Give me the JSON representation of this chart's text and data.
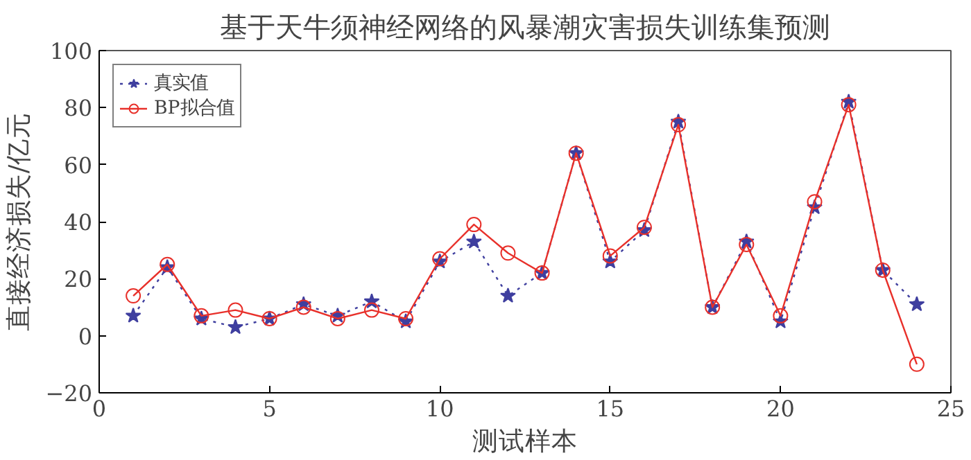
{
  "chart_data": {
    "type": "line",
    "title": "基于天牛须神经网络的风暴潮灾害损失训练集预测",
    "xlabel": "测试样本",
    "ylabel": "直接经济损失/亿元",
    "x": [
      1,
      2,
      3,
      4,
      5,
      6,
      7,
      8,
      9,
      10,
      11,
      12,
      13,
      14,
      15,
      16,
      17,
      18,
      19,
      20,
      21,
      22,
      23,
      24
    ],
    "series": [
      {
        "name": "真实值",
        "color": "#3f3f9f",
        "marker": "star",
        "line_style": "dotted",
        "values": [
          7,
          24,
          6,
          3,
          6,
          11,
          7,
          12,
          5,
          26,
          33,
          14,
          22,
          64,
          26,
          37,
          75,
          10,
          33,
          5,
          45,
          82,
          23,
          11
        ]
      },
      {
        "name": "BP拟合值",
        "color": "#e8302a",
        "marker": "circle",
        "line_style": "solid",
        "values": [
          14,
          25,
          7,
          9,
          6,
          10,
          6,
          9,
          6,
          27,
          39,
          29,
          22,
          64,
          28,
          38,
          74,
          10,
          32,
          7,
          47,
          81,
          23,
          -10
        ]
      }
    ],
    "xlim": [
      0,
      25
    ],
    "xticks": [
      0,
      5,
      10,
      15,
      20,
      25
    ],
    "ylim": [
      -20,
      100
    ],
    "yticks": [
      -20,
      0,
      20,
      40,
      60,
      80,
      100
    ],
    "grid": false,
    "legend": "top left"
  }
}
